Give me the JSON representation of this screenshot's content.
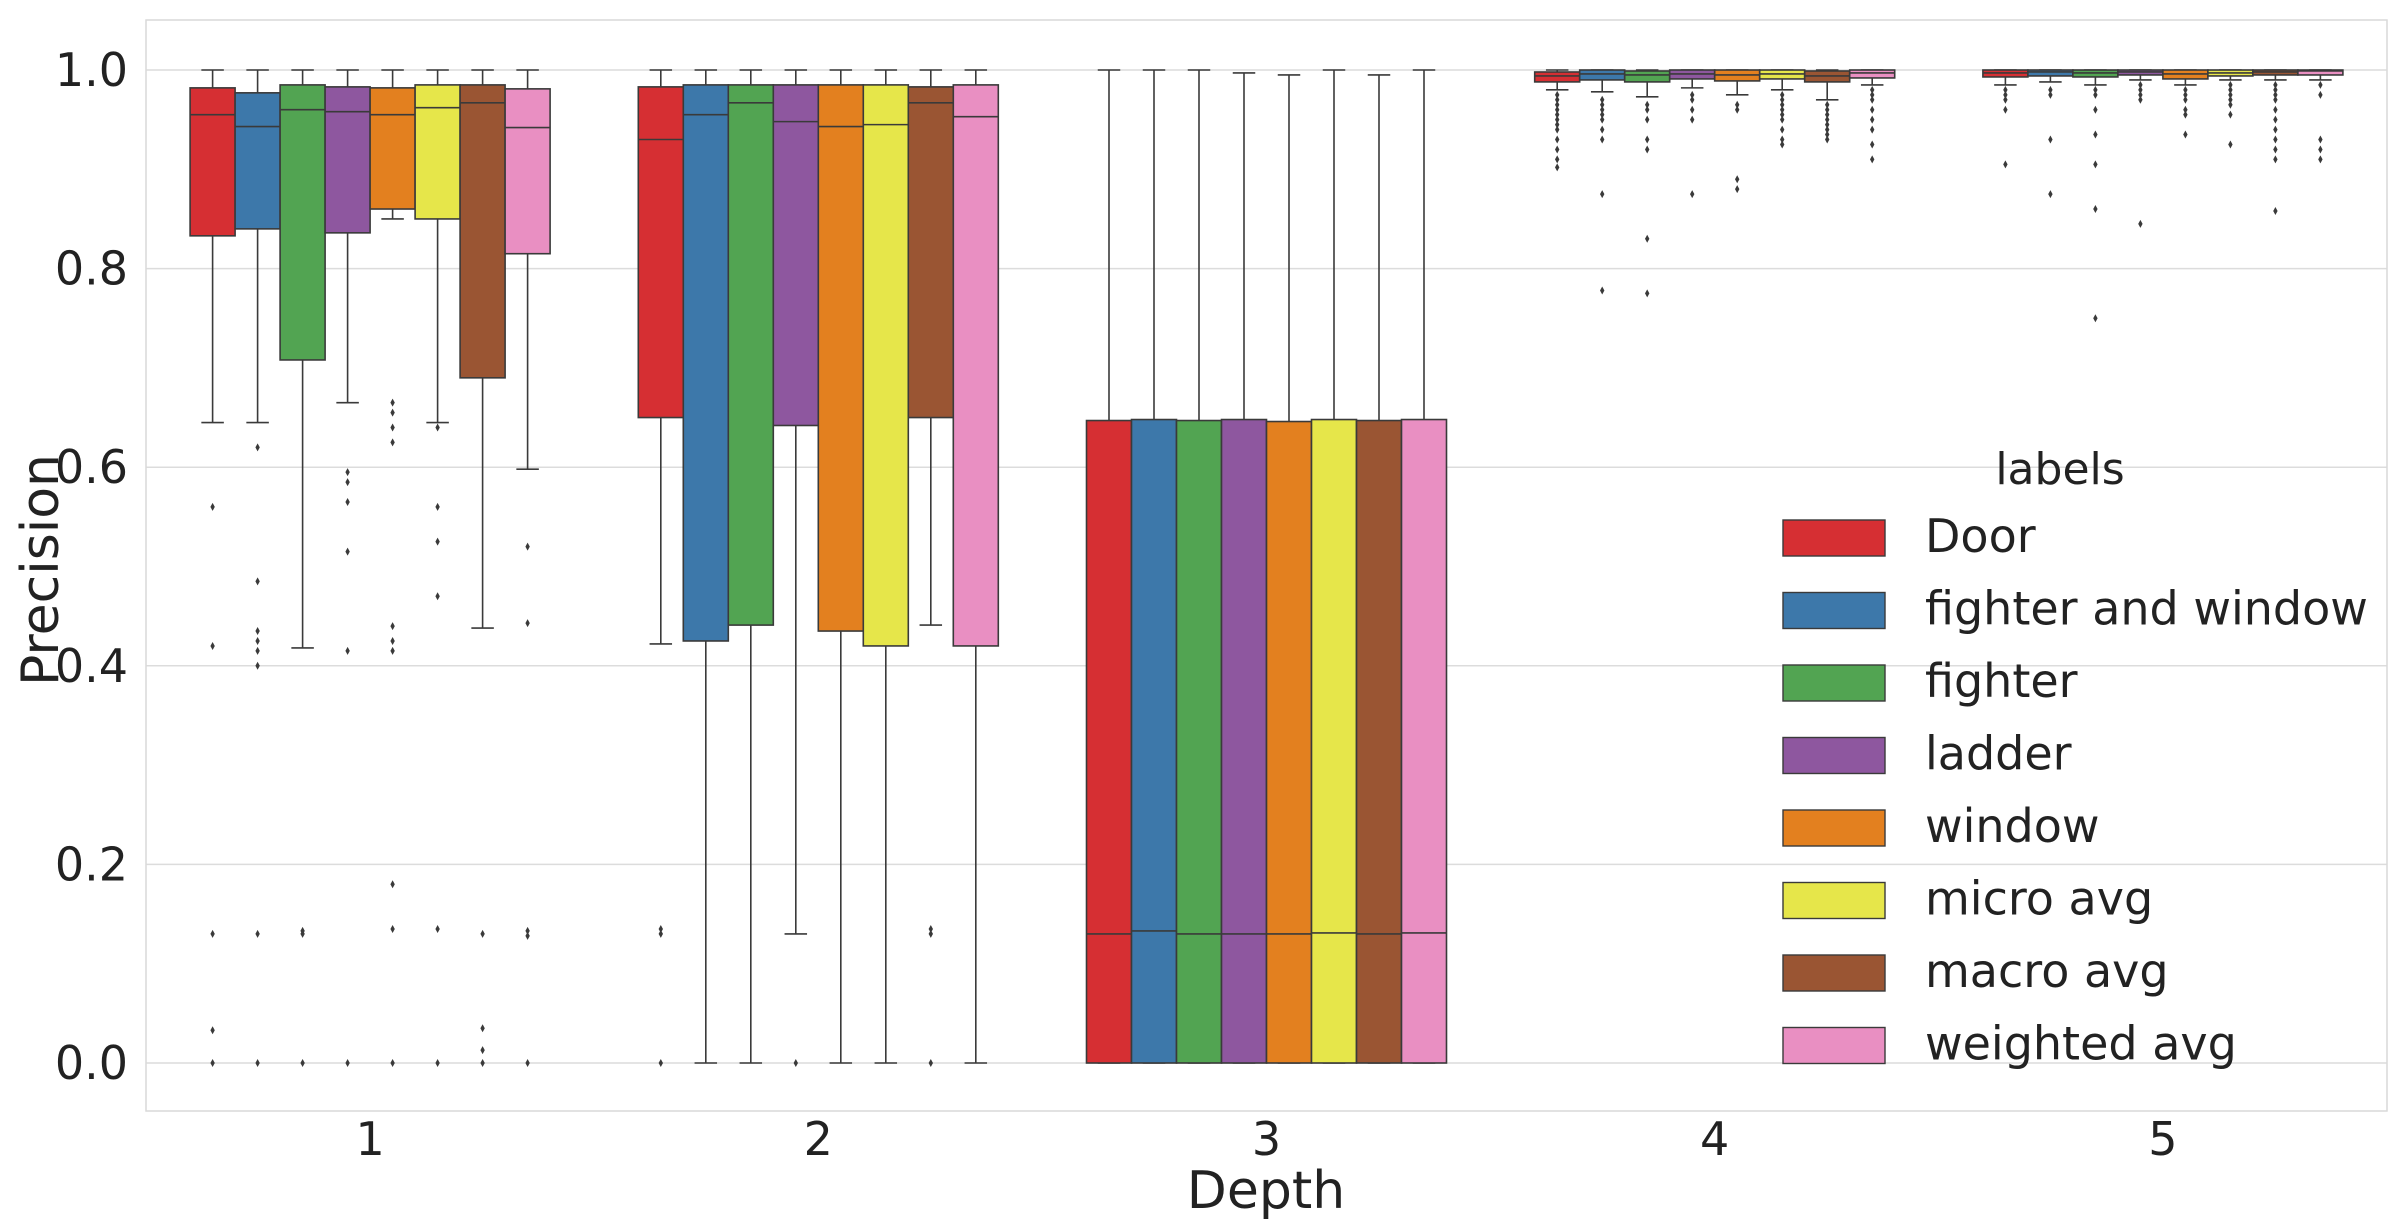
{
  "chart_data": {
    "type": "boxplot",
    "title": "",
    "xlabel": "Depth",
    "ylabel": "Precision",
    "ylim": [
      -0.05,
      1.05
    ],
    "yticks": [
      0.0,
      0.2,
      0.4,
      0.6,
      0.8,
      1.0
    ],
    "ytick_labels": [
      "0.0",
      "0.2",
      "0.4",
      "0.6",
      "0.8",
      "1.0"
    ],
    "grid": true,
    "categories": [
      "1",
      "2",
      "3",
      "4",
      "5"
    ],
    "legend": {
      "title": "labels",
      "placement": "center-right",
      "entries": [
        "Door",
        "fighter and window",
        "fighter",
        "ladder",
        "window",
        "micro avg",
        "macro avg",
        "weighted avg"
      ]
    },
    "series": [
      {
        "name": "Door",
        "color": "#d62f33",
        "boxes": [
          {
            "q1": 0.833,
            "median": 0.955,
            "q3": 0.982,
            "whislo": 0.645,
            "whishi": 1.0,
            "fliers": [
              0.56,
              0.42,
              0.13,
              0.033,
              0.0
            ]
          },
          {
            "q1": 0.65,
            "median": 0.93,
            "q3": 0.983,
            "whislo": 0.422,
            "whishi": 1.0,
            "fliers": [
              0.135,
              0.13,
              0.0
            ]
          },
          {
            "q1": 0.0,
            "median": 0.13,
            "q3": 0.647,
            "whislo": 0.0,
            "whishi": 1.0,
            "fliers": []
          },
          {
            "q1": 0.988,
            "median": 0.994,
            "q3": 0.998,
            "whislo": 0.98,
            "whishi": 1.0,
            "fliers": [
              0.975,
              0.97,
              0.965,
              0.96,
              0.955,
              0.95,
              0.945,
              0.94,
              0.93,
              0.92,
              0.91,
              0.902
            ]
          },
          {
            "q1": 0.993,
            "median": 0.997,
            "q3": 1.0,
            "whislo": 0.985,
            "whishi": 1.0,
            "fliers": [
              0.98,
              0.975,
              0.97,
              0.96,
              0.905
            ]
          }
        ]
      },
      {
        "name": "fighter and window",
        "color": "#3d78aa",
        "boxes": [
          {
            "q1": 0.84,
            "median": 0.943,
            "q3": 0.977,
            "whislo": 0.645,
            "whishi": 1.0,
            "fliers": [
              0.62,
              0.485,
              0.435,
              0.425,
              0.415,
              0.4,
              0.13,
              0.0
            ]
          },
          {
            "q1": 0.425,
            "median": 0.955,
            "q3": 0.985,
            "whislo": 0.0,
            "whishi": 1.0,
            "fliers": []
          },
          {
            "q1": 0.0,
            "median": 0.133,
            "q3": 0.648,
            "whislo": 0.0,
            "whishi": 1.0,
            "fliers": []
          },
          {
            "q1": 0.99,
            "median": 0.996,
            "q3": 1.0,
            "whislo": 0.978,
            "whishi": 1.0,
            "fliers": [
              0.97,
              0.965,
              0.96,
              0.955,
              0.95,
              0.94,
              0.93,
              0.875,
              0.778
            ]
          },
          {
            "q1": 0.994,
            "median": 0.998,
            "q3": 1.0,
            "whislo": 0.988,
            "whishi": 1.0,
            "fliers": [
              0.98,
              0.975,
              0.93,
              0.875
            ]
          }
        ]
      },
      {
        "name": "fighter",
        "color": "#52a452",
        "boxes": [
          {
            "q1": 0.708,
            "median": 0.96,
            "q3": 0.985,
            "whislo": 0.418,
            "whishi": 1.0,
            "fliers": [
              0.133,
              0.13,
              0.0
            ]
          },
          {
            "q1": 0.441,
            "median": 0.967,
            "q3": 0.985,
            "whislo": 0.0,
            "whishi": 1.0,
            "fliers": []
          },
          {
            "q1": 0.0,
            "median": 0.13,
            "q3": 0.647,
            "whislo": 0.0,
            "whishi": 1.0,
            "fliers": []
          },
          {
            "q1": 0.988,
            "median": 0.995,
            "q3": 0.999,
            "whislo": 0.973,
            "whishi": 1.0,
            "fliers": [
              0.965,
              0.96,
              0.95,
              0.93,
              0.92,
              0.83,
              0.775
            ]
          },
          {
            "q1": 0.993,
            "median": 0.997,
            "q3": 1.0,
            "whislo": 0.985,
            "whishi": 1.0,
            "fliers": [
              0.98,
              0.975,
              0.96,
              0.935,
              0.905,
              0.86,
              0.75
            ]
          }
        ]
      },
      {
        "name": "ladder",
        "color": "#8e579f",
        "boxes": [
          {
            "q1": 0.836,
            "median": 0.958,
            "q3": 0.983,
            "whislo": 0.665,
            "whishi": 1.0,
            "fliers": [
              0.595,
              0.585,
              0.565,
              0.515,
              0.415,
              0.0
            ]
          },
          {
            "q1": 0.642,
            "median": 0.948,
            "q3": 0.985,
            "whislo": 0.13,
            "whishi": 1.0,
            "fliers": [
              0.0
            ]
          },
          {
            "q1": 0.0,
            "median": 0.13,
            "q3": 0.648,
            "whislo": 0.0,
            "whishi": 0.997,
            "fliers": []
          },
          {
            "q1": 0.991,
            "median": 0.996,
            "q3": 1.0,
            "whislo": 0.982,
            "whishi": 1.0,
            "fliers": [
              0.975,
              0.97,
              0.96,
              0.95,
              0.875
            ]
          },
          {
            "q1": 0.995,
            "median": 0.998,
            "q3": 1.0,
            "whislo": 0.99,
            "whishi": 1.0,
            "fliers": [
              0.985,
              0.98,
              0.975,
              0.97,
              0.845
            ]
          }
        ]
      },
      {
        "name": "window",
        "color": "#e3801f",
        "boxes": [
          {
            "q1": 0.86,
            "median": 0.955,
            "q3": 0.982,
            "whislo": 0.85,
            "whishi": 1.0,
            "fliers": [
              0.665,
              0.655,
              0.64,
              0.625,
              0.44,
              0.425,
              0.415,
              0.18,
              0.135,
              0.0
            ]
          },
          {
            "q1": 0.435,
            "median": 0.943,
            "q3": 0.985,
            "whislo": 0.0,
            "whishi": 1.0,
            "fliers": []
          },
          {
            "q1": 0.0,
            "median": 0.13,
            "q3": 0.646,
            "whislo": 0.0,
            "whishi": 0.995,
            "fliers": []
          },
          {
            "q1": 0.989,
            "median": 0.995,
            "q3": 1.0,
            "whislo": 0.975,
            "whishi": 1.0,
            "fliers": [
              0.965,
              0.96,
              0.89,
              0.88
            ]
          },
          {
            "q1": 0.991,
            "median": 0.996,
            "q3": 1.0,
            "whislo": 0.985,
            "whishi": 1.0,
            "fliers": [
              0.98,
              0.975,
              0.97,
              0.96,
              0.955,
              0.935
            ]
          }
        ]
      },
      {
        "name": "micro avg",
        "color": "#e6e64a",
        "boxes": [
          {
            "q1": 0.85,
            "median": 0.962,
            "q3": 0.985,
            "whislo": 0.645,
            "whishi": 1.0,
            "fliers": [
              0.64,
              0.56,
              0.525,
              0.47,
              0.135,
              0.0
            ]
          },
          {
            "q1": 0.42,
            "median": 0.945,
            "q3": 0.985,
            "whislo": 0.0,
            "whishi": 1.0,
            "fliers": []
          },
          {
            "q1": 0.0,
            "median": 0.131,
            "q3": 0.648,
            "whislo": 0.0,
            "whishi": 1.0,
            "fliers": []
          },
          {
            "q1": 0.991,
            "median": 0.996,
            "q3": 1.0,
            "whislo": 0.98,
            "whishi": 1.0,
            "fliers": [
              0.975,
              0.97,
              0.965,
              0.96,
              0.955,
              0.95,
              0.94,
              0.93,
              0.925
            ]
          },
          {
            "q1": 0.994,
            "median": 0.997,
            "q3": 1.0,
            "whislo": 0.99,
            "whishi": 1.0,
            "fliers": [
              0.985,
              0.98,
              0.975,
              0.97,
              0.965,
              0.955,
              0.925
            ]
          }
        ]
      },
      {
        "name": "macro avg",
        "color": "#9a5533",
        "boxes": [
          {
            "q1": 0.69,
            "median": 0.967,
            "q3": 0.985,
            "whislo": 0.438,
            "whishi": 1.0,
            "fliers": [
              0.13,
              0.035,
              0.013,
              0.0
            ]
          },
          {
            "q1": 0.65,
            "median": 0.967,
            "q3": 0.983,
            "whislo": 0.441,
            "whishi": 1.0,
            "fliers": [
              0.135,
              0.13,
              0.0
            ]
          },
          {
            "q1": 0.0,
            "median": 0.13,
            "q3": 0.647,
            "whislo": 0.0,
            "whishi": 0.995,
            "fliers": []
          },
          {
            "q1": 0.988,
            "median": 0.994,
            "q3": 0.999,
            "whislo": 0.97,
            "whishi": 1.0,
            "fliers": [
              0.965,
              0.96,
              0.955,
              0.95,
              0.945,
              0.94,
              0.935,
              0.93
            ]
          },
          {
            "q1": 0.995,
            "median": 0.998,
            "q3": 1.0,
            "whislo": 0.99,
            "whishi": 1.0,
            "fliers": [
              0.985,
              0.98,
              0.975,
              0.97,
              0.96,
              0.95,
              0.94,
              0.93,
              0.92,
              0.91,
              0.858
            ]
          }
        ]
      },
      {
        "name": "weighted avg",
        "color": "#e98fc2",
        "boxes": [
          {
            "q1": 0.815,
            "median": 0.942,
            "q3": 0.981,
            "whislo": 0.598,
            "whishi": 1.0,
            "fliers": [
              0.52,
              0.443,
              0.133,
              0.128,
              0.0
            ]
          },
          {
            "q1": 0.42,
            "median": 0.953,
            "q3": 0.985,
            "whislo": 0.0,
            "whishi": 1.0,
            "fliers": []
          },
          {
            "q1": 0.0,
            "median": 0.131,
            "q3": 0.648,
            "whislo": 0.0,
            "whishi": 1.0,
            "fliers": []
          },
          {
            "q1": 0.992,
            "median": 0.997,
            "q3": 1.0,
            "whislo": 0.985,
            "whishi": 1.0,
            "fliers": [
              0.98,
              0.975,
              0.97,
              0.96,
              0.95,
              0.94,
              0.925,
              0.91
            ]
          },
          {
            "q1": 0.995,
            "median": 0.999,
            "q3": 1.0,
            "whislo": 0.99,
            "whishi": 1.0,
            "fliers": [
              0.985,
              0.975,
              0.93,
              0.92,
              0.91
            ]
          }
        ]
      }
    ]
  }
}
